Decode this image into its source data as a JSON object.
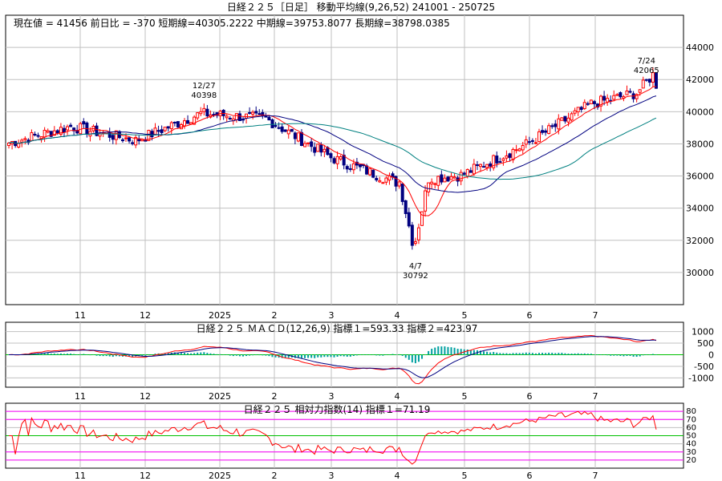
{
  "header": {
    "title": "日経２２５［日足］ 移動平均線(9,26,52)  241001 - 250725",
    "stats": "現在値 = 41456  前日比 = -370   短期線=40305.2222  中期線=39753.8077  長期線=38798.0385"
  },
  "colors": {
    "background": "#ffffff",
    "frame": "#000000",
    "grid": "#c0c0c0",
    "candle_up": "#ff0000",
    "candle_down": "#000080",
    "short_ma": "#ff0000",
    "mid_ma": "#000080",
    "long_ma": "#008080",
    "macd_line1": "#ff0000",
    "macd_line2": "#000080",
    "macd_hist": "#00a0a0",
    "rsi_line": "#ff0000",
    "rsi_guide_outer": "#ff00ff",
    "rsi_guide_inner": "#00c000"
  },
  "x_axis": {
    "month_labels": [
      "11",
      "12",
      "2025",
      "2",
      "3",
      "4",
      "5",
      "6",
      "7"
    ]
  },
  "chart_data": [
    {
      "type": "candlestick",
      "title": "日経２２５［日足］ 移動平均線(9,26,52)  241001 - 250725",
      "series_names": [
        "短期線",
        "中期線",
        "長期線"
      ],
      "ma_periods": [
        9,
        26,
        52
      ],
      "ylim": [
        28000,
        46000
      ],
      "yticks": [
        30000,
        32000,
        34000,
        36000,
        38000,
        40000,
        42000,
        44000
      ],
      "grid": true,
      "monthly_closes": [
        {
          "month": "2024-10",
          "close": 39081
        },
        {
          "month": "2024-11",
          "close": 38208
        },
        {
          "month": "2024-12",
          "close": 39894
        },
        {
          "month": "2025-01",
          "close": 39572
        },
        {
          "month": "2025-02",
          "close": 37155
        },
        {
          "month": "2025-03",
          "close": 35617
        },
        {
          "month": "2025-04",
          "close": 36045
        },
        {
          "month": "2025-05",
          "close": 37965
        },
        {
          "month": "2025-06",
          "close": 40487
        },
        {
          "month": "2025-07",
          "close": 41456
        }
      ],
      "latest": {
        "close": 41456,
        "change": -370,
        "short_ma": 40305.2222,
        "mid_ma": 39753.8077,
        "long_ma": 38798.0385
      },
      "annotations": [
        {
          "label": "12/27",
          "value": "40398"
        },
        {
          "label": "4/7",
          "value": "30792"
        },
        {
          "label": "7/24",
          "value": "42065"
        }
      ]
    },
    {
      "type": "line",
      "title": "日経２２５  ＭＡＣＤ(12,26,9)  指標１=593.33  指標２=423.97",
      "ylim": [
        -1400,
        1400
      ],
      "yticks": [
        -1000,
        -500,
        0,
        500,
        1000
      ],
      "latest": {
        "line1": 593.33,
        "line2": 423.97
      }
    },
    {
      "type": "line",
      "title": "日経２２５  相対力指数(14)  指標１=71.19",
      "ylim": [
        10,
        90
      ],
      "yticks": [
        20,
        30,
        40,
        50,
        60,
        70,
        80
      ],
      "guides": [
        20,
        30,
        50,
        70,
        80
      ],
      "latest": {
        "rsi": 71.19
      }
    }
  ]
}
